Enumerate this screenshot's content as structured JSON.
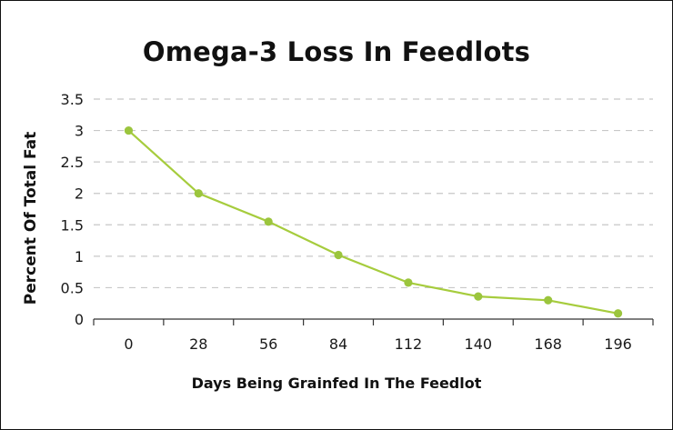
{
  "chart_data": {
    "type": "line",
    "title": "Omega-3 Loss In Feedlots",
    "xlabel": "Days Being Grainfed In The Feedlot",
    "ylabel": "Percent Of Total Fat",
    "categories": [
      "0",
      "28",
      "56",
      "84",
      "112",
      "140",
      "168",
      "196"
    ],
    "values": [
      3.0,
      2.0,
      1.55,
      1.02,
      0.58,
      0.36,
      0.3,
      0.09
    ],
    "yticks": [
      "0",
      "0.5",
      "1",
      "1.5",
      "2",
      "2.5",
      "3",
      "3.5"
    ],
    "ylim": [
      0,
      3.5
    ],
    "grid": "horizontal dashed",
    "legend": "none",
    "colors": {
      "line": "#a6cc3d",
      "point": "#9bc53d",
      "grid": "#c8c8c8",
      "axis": "#333333"
    }
  }
}
